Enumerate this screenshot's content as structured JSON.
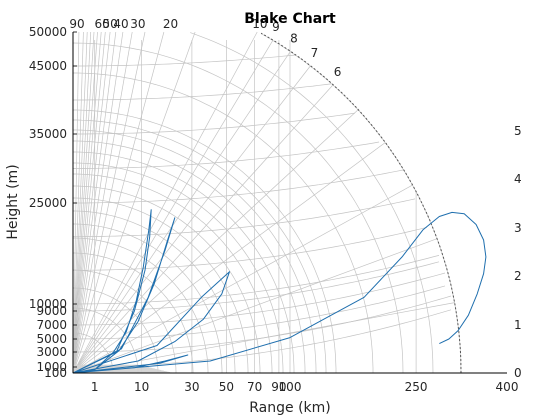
{
  "chart_data": {
    "type": "line",
    "title": "Blake Chart",
    "xlabel": "Range (km)",
    "ylabel": "Height (m)",
    "x_ticks": [
      "1",
      "10",
      "30",
      "50",
      "70",
      "90",
      "100",
      "250",
      "400"
    ],
    "x_tick_values": [
      1,
      10,
      30,
      50,
      70,
      90,
      100,
      250,
      400
    ],
    "y_ticks": [
      "100",
      "1000",
      "3000",
      "5000",
      "7000",
      "9000",
      "10000",
      "25000",
      "35000",
      "45000",
      "50000"
    ],
    "y_tick_values": [
      100,
      1000,
      3000,
      5000,
      7000,
      9000,
      10000,
      25000,
      35000,
      45000,
      50000
    ],
    "elevation_labels": [
      "90",
      "60",
      "50",
      "40",
      "30",
      "20",
      "10",
      "9",
      "8",
      "7",
      "6",
      "5",
      "4",
      "3",
      "2",
      "1",
      "0"
    ],
    "elevation_values": [
      90,
      60,
      50,
      40,
      30,
      20,
      10,
      9,
      8,
      7,
      6,
      5,
      4,
      3,
      2,
      1,
      0
    ],
    "xlim": [
      0,
      400
    ],
    "ylim": [
      0,
      50000
    ],
    "scale": "Blake chart: square-root range axis, warped height grid",
    "grid": true,
    "colors": {
      "grid": "#c4c4c4",
      "curve": "#1f6fae",
      "axis": "#000000"
    },
    "series": [
      {
        "values_km_m": [
          [
            0,
            0
          ],
          [
            4,
            3000
          ],
          [
            8,
            9000
          ],
          [
            11,
            15000
          ],
          [
            12.5,
            20000
          ],
          [
            13,
            24000
          ],
          [
            12.2,
            21000
          ],
          [
            10.5,
            15500
          ],
          [
            8.5,
            10500
          ],
          [
            6,
            6000
          ],
          [
            3.5,
            3000
          ],
          [
            1,
            600
          ],
          [
            0,
            0
          ],
          [
            5,
            3500
          ],
          [
            12,
            11000
          ],
          [
            18,
            18000
          ],
          [
            22,
            22800
          ],
          [
            19,
            19500
          ],
          [
            14,
            13000
          ],
          [
            9,
            7500
          ],
          [
            4.5,
            3200
          ],
          [
            1,
            600
          ],
          [
            0,
            0
          ],
          [
            15,
            4000
          ],
          [
            35,
            11000
          ],
          [
            52,
            14800
          ],
          [
            47,
            11500
          ],
          [
            36,
            7800
          ],
          [
            22,
            4600
          ],
          [
            9,
            1800
          ],
          [
            0,
            0
          ],
          [
            8,
            900
          ],
          [
            18,
            1800
          ],
          [
            28,
            2600
          ],
          [
            16,
            1500
          ],
          [
            0,
            0
          ],
          [
            40,
            1800
          ],
          [
            100,
            5200
          ],
          [
            180,
            11000
          ],
          [
            230,
            17000
          ],
          [
            260,
            21000
          ],
          [
            285,
            23000
          ],
          [
            305,
            23600
          ],
          [
            325,
            23400
          ],
          [
            345,
            21800
          ],
          [
            358,
            19500
          ],
          [
            362,
            17000
          ],
          [
            358,
            14500
          ],
          [
            347,
            11500
          ],
          [
            332,
            8400
          ],
          [
            315,
            6200
          ],
          [
            300,
            5000
          ],
          [
            285,
            4300
          ]
        ]
      }
    ]
  }
}
